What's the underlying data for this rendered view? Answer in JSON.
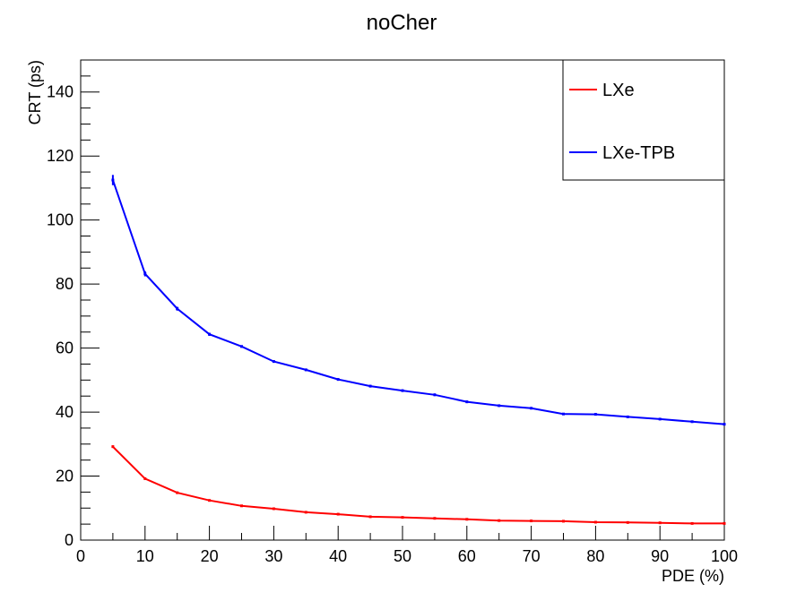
{
  "chart_data": {
    "type": "line",
    "title": "noCher",
    "xlabel": "PDE (%)",
    "ylabel": "CRT (ps)",
    "xlim": [
      0,
      100
    ],
    "ylim": [
      0,
      150
    ],
    "x_ticks": [
      0,
      10,
      20,
      30,
      40,
      50,
      60,
      70,
      80,
      90,
      100
    ],
    "y_ticks": [
      0,
      20,
      40,
      60,
      80,
      100,
      120,
      140
    ],
    "legend_position": "top-right",
    "grid": false,
    "series": [
      {
        "name": "LXe",
        "color": "#ff0000",
        "x": [
          5,
          10,
          15,
          20,
          25,
          30,
          35,
          40,
          45,
          50,
          55,
          60,
          65,
          70,
          75,
          80,
          85,
          90,
          95,
          100
        ],
        "y": [
          29.2,
          19.2,
          14.8,
          12.4,
          10.7,
          9.8,
          8.7,
          8.1,
          7.3,
          7.1,
          6.8,
          6.5,
          6.1,
          6.0,
          5.9,
          5.6,
          5.5,
          5.4,
          5.2,
          5.2
        ],
        "err": [
          0.4,
          0.3,
          0.2,
          0.2,
          0.2,
          0.2,
          0.2,
          0.2,
          0.2,
          0.2,
          0.2,
          0.2,
          0.2,
          0.2,
          0.2,
          0.2,
          0.2,
          0.2,
          0.2,
          0.2
        ]
      },
      {
        "name": "LXe-TPB",
        "color": "#0000ff",
        "x": [
          5,
          10,
          15,
          20,
          25,
          30,
          35,
          40,
          45,
          50,
          55,
          60,
          65,
          70,
          75,
          80,
          85,
          90,
          95,
          100
        ],
        "y": [
          112.5,
          83.2,
          72.3,
          64.3,
          60.5,
          55.8,
          53.2,
          50.2,
          48.1,
          46.7,
          45.4,
          43.2,
          42.0,
          41.2,
          39.4,
          39.3,
          38.5,
          37.8,
          37.0,
          36.2
        ],
        "err": [
          1.6,
          0.8,
          0.6,
          0.5,
          0.4,
          0.4,
          0.4,
          0.4,
          0.4,
          0.4,
          0.4,
          0.4,
          0.3,
          0.3,
          0.3,
          0.3,
          0.3,
          0.3,
          0.3,
          0.3
        ]
      }
    ]
  }
}
